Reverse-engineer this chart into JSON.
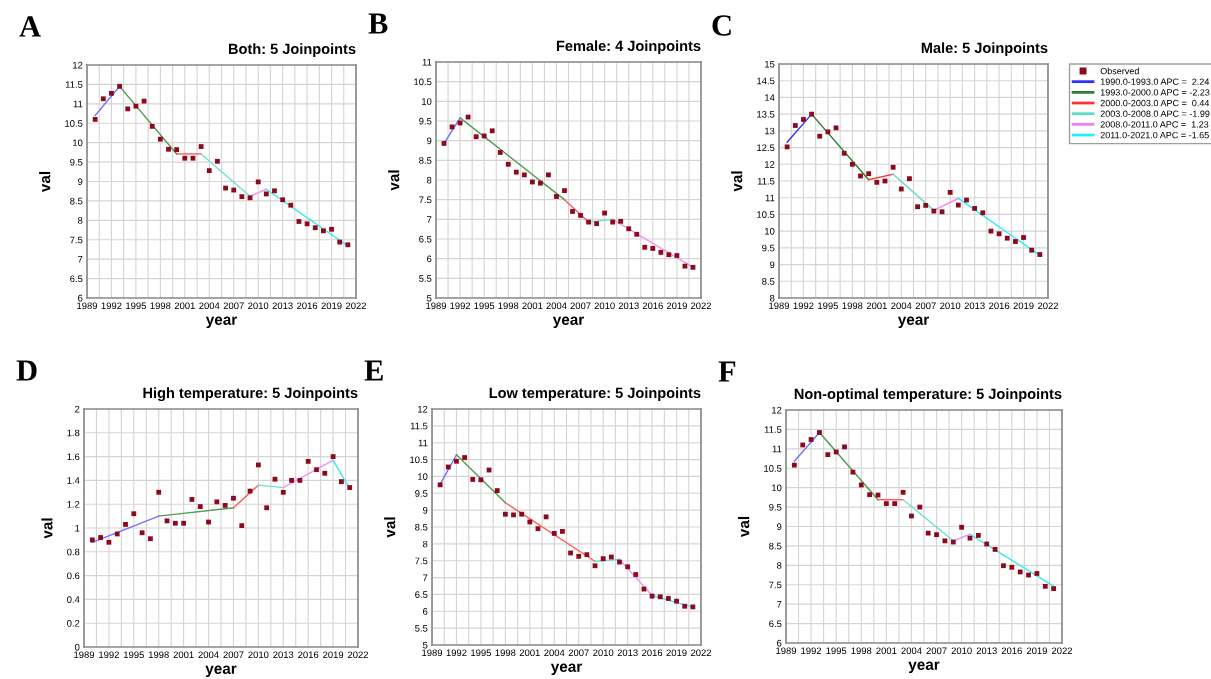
{
  "chart_data": [
    {
      "type": "scatter",
      "title": "Both: 5 Joinpoints",
      "xlabel": "year",
      "ylabel": "val",
      "annotations": [
        "A"
      ],
      "grid": true,
      "x": [
        1990,
        1991,
        1992,
        1993,
        1994,
        1995,
        1996,
        1997,
        1998,
        1999,
        2000,
        2001,
        2002,
        2003,
        2004,
        2005,
        2006,
        2007,
        2008,
        2009,
        2010,
        2011,
        2012,
        2013,
        2014,
        2015,
        2016,
        2017,
        2018,
        2019,
        2020,
        2021
      ],
      "xlim": [
        1989,
        2022
      ],
      "xticks": [
        1989,
        {
          "value": 1990.5,
          "label": null
        },
        1992,
        {
          "value": 1993.5,
          "label": null
        },
        1995,
        {
          "value": 1996.5,
          "label": null
        },
        1998,
        {
          "value": 1999.5,
          "label": null
        },
        2001,
        {
          "value": 2002.5,
          "label": null
        },
        2004,
        {
          "value": 2005.5,
          "label": null
        },
        2007,
        {
          "value": 2008.5,
          "label": null
        },
        2010,
        {
          "value": 2011.5,
          "label": null
        },
        2013,
        {
          "value": 2014.5,
          "label": null
        },
        2016,
        {
          "value": 2017.5,
          "label": null
        },
        2019,
        {
          "value": 2020.5,
          "label": null
        },
        2022
      ],
      "ylim": [
        6,
        12
      ],
      "yticks": [
        6,
        6.5,
        7,
        7.5,
        8,
        8.5,
        9,
        9.5,
        10,
        10.5,
        11,
        11.5,
        12
      ],
      "series": [
        {
          "marker": "square",
          "color": "#8b0a1e",
          "values": [
            10.6,
            11.13,
            11.27,
            11.45,
            10.87,
            10.94,
            11.07,
            10.42,
            10.09,
            9.83,
            9.82,
            9.6,
            9.6,
            9.9,
            9.28,
            9.52,
            8.83,
            8.78,
            8.61,
            8.58,
            8.99,
            8.68,
            8.76,
            8.53,
            8.39,
            7.97,
            7.91,
            7.81,
            7.73,
            7.77,
            7.44,
            7.37
          ]
        },
        {
          "type": "line",
          "color": "#7070ff",
          "x": [
            1990,
            1993
          ],
          "values": [
            10.7,
            11.45
          ]
        },
        {
          "type": "line",
          "color": "#4f9a4f",
          "x": [
            1993,
            2000
          ],
          "values": [
            11.45,
            9.71
          ]
        },
        {
          "type": "line",
          "color": "#ff5a5a",
          "x": [
            2000,
            2003
          ],
          "values": [
            9.71,
            9.71
          ]
        },
        {
          "type": "line",
          "color": "#6fe0d0",
          "x": [
            2003,
            2009
          ],
          "values": [
            9.71,
            8.62
          ]
        },
        {
          "type": "line",
          "color": "#f090f0",
          "x": [
            2009,
            2011
          ],
          "values": [
            8.62,
            8.8
          ]
        },
        {
          "type": "line",
          "color": "#40e8f0",
          "x": [
            2011,
            2021
          ],
          "values": [
            8.8,
            7.34
          ]
        }
      ]
    },
    {
      "type": "scatter",
      "title": "Female: 4 Joinpoints",
      "xlabel": "year",
      "ylabel": "val",
      "annotations": [
        "B"
      ],
      "grid": true,
      "x": [
        1990,
        1991,
        1992,
        1993,
        1994,
        1995,
        1996,
        1997,
        1998,
        1999,
        2000,
        2001,
        2002,
        2003,
        2004,
        2005,
        2006,
        2007,
        2008,
        2009,
        2010,
        2011,
        2012,
        2013,
        2014,
        2015,
        2016,
        2017,
        2018,
        2019,
        2020,
        2021
      ],
      "xlim": [
        1989,
        2022
      ],
      "xticks": [
        1989,
        {
          "value": 1990.5,
          "label": null
        },
        1992,
        {
          "value": 1993.5,
          "label": null
        },
        1995,
        {
          "value": 1996.5,
          "label": null
        },
        1998,
        {
          "value": 1999.5,
          "label": null
        },
        2001,
        {
          "value": 2002.5,
          "label": null
        },
        2004,
        {
          "value": 2005.5,
          "label": null
        },
        2007,
        {
          "value": 2008.5,
          "label": null
        },
        2010,
        {
          "value": 2011.5,
          "label": null
        },
        2013,
        {
          "value": 2014.5,
          "label": null
        },
        2016,
        {
          "value": 2017.5,
          "label": null
        },
        2019,
        {
          "value": 2020.5,
          "label": null
        },
        2022
      ],
      "ylim": [
        5,
        11
      ],
      "yticks": [
        5,
        5.5,
        6,
        6.5,
        7,
        7.5,
        8,
        8.5,
        9,
        9.5,
        10,
        10.5,
        11
      ],
      "series": [
        {
          "marker": "square",
          "color": "#8b0a1e",
          "values": [
            8.93,
            9.35,
            9.45,
            9.6,
            9.1,
            9.12,
            9.25,
            8.7,
            8.4,
            8.2,
            8.13,
            7.95,
            7.92,
            8.13,
            7.58,
            7.73,
            7.2,
            7.1,
            6.93,
            6.89,
            7.16,
            6.93,
            6.95,
            6.76,
            6.62,
            6.29,
            6.26,
            6.16,
            6.1,
            6.08,
            5.81,
            5.78
          ]
        },
        {
          "type": "line",
          "color": "#7070ff",
          "x": [
            1990,
            1992
          ],
          "values": [
            8.93,
            9.58
          ]
        },
        {
          "type": "line",
          "color": "#4f9a4f",
          "x": [
            1992,
            2005
          ],
          "values": [
            9.58,
            7.5
          ]
        },
        {
          "type": "line",
          "color": "#ff5a5a",
          "x": [
            2005,
            2008
          ],
          "values": [
            7.5,
            6.93
          ]
        },
        {
          "type": "line",
          "color": "#6fe0d0",
          "x": [
            2008,
            2011
          ],
          "values": [
            6.93,
            7.0
          ]
        },
        {
          "type": "line",
          "color": "#f090f0",
          "x": [
            2011,
            2021
          ],
          "values": [
            7.0,
            5.78
          ]
        }
      ]
    },
    {
      "type": "scatter",
      "title": "Male: 5 Joinpoints",
      "xlabel": "year",
      "ylabel": "val",
      "annotations": [
        "C"
      ],
      "grid": true,
      "legend": "right",
      "x": [
        1990,
        1991,
        1992,
        1993,
        1994,
        1995,
        1996,
        1997,
        1998,
        1999,
        2000,
        2001,
        2002,
        2003,
        2004,
        2005,
        2006,
        2007,
        2008,
        2009,
        2010,
        2011,
        2012,
        2013,
        2014,
        2015,
        2016,
        2017,
        2018,
        2019,
        2020,
        2021
      ],
      "xlim": [
        1989,
        2022
      ],
      "xticks": [
        1989,
        {
          "value": 1990.5,
          "label": null
        },
        1992,
        {
          "value": 1993.5,
          "label": null
        },
        1995,
        {
          "value": 1996.5,
          "label": null
        },
        1998,
        {
          "value": 1999.5,
          "label": null
        },
        2001,
        {
          "value": 2002.5,
          "label": null
        },
        2004,
        {
          "value": 2005.5,
          "label": null
        },
        2007,
        {
          "value": 2008.5,
          "label": null
        },
        2010,
        {
          "value": 2011.5,
          "label": null
        },
        2013,
        {
          "value": 2014.5,
          "label": null
        },
        2016,
        {
          "value": 2017.5,
          "label": null
        },
        2019,
        {
          "value": 2020.5,
          "label": null
        },
        2022
      ],
      "ylim": [
        8,
        15
      ],
      "yticks": [
        8,
        8.5,
        9,
        9.5,
        10,
        10.5,
        11,
        11.5,
        12,
        12.5,
        13,
        13.5,
        14,
        14.5,
        15
      ],
      "series": [
        {
          "name": "Observed",
          "marker": "square",
          "color": "#8b0a1e",
          "values": [
            12.52,
            13.16,
            13.34,
            13.5,
            12.84,
            12.97,
            13.09,
            12.33,
            12.0,
            11.65,
            11.72,
            11.46,
            11.5,
            11.91,
            11.26,
            11.57,
            10.73,
            10.77,
            10.6,
            10.58,
            11.16,
            10.78,
            10.93,
            10.68,
            10.55,
            10.0,
            9.92,
            9.79,
            9.69,
            9.81,
            9.43,
            9.3
          ]
        },
        {
          "type": "line",
          "name": "1990.0-1993.0 APC =  2.24",
          "color": "#3030f0",
          "x": [
            1990,
            1993
          ],
          "values": [
            12.66,
            13.5
          ]
        },
        {
          "type": "line",
          "name": "1993.0-2000.0 APC = -2.23",
          "color": "#2e7d2e",
          "x": [
            1993,
            2000
          ],
          "values": [
            13.5,
            11.54
          ]
        },
        {
          "type": "line",
          "name": "2000.0-2003.0 APC =  0.44",
          "color": "#ff3030",
          "x": [
            2000,
            2003
          ],
          "values": [
            11.54,
            11.7
          ]
        },
        {
          "type": "line",
          "name": "2003.0-2008.0 APC = -1.99",
          "color": "#5fdcc8",
          "x": [
            2003,
            2008
          ],
          "values": [
            11.7,
            10.62
          ]
        },
        {
          "type": "line",
          "name": "2008.0-2011.0 APC =  1.23",
          "color": "#f080f0",
          "x": [
            2008,
            2011
          ],
          "values": [
            10.62,
            10.98
          ]
        },
        {
          "type": "line",
          "name": "2011.0-2021.0 APC = -1.65",
          "color": "#20f0f8",
          "x": [
            2011,
            2021
          ],
          "values": [
            10.98,
            9.28
          ]
        }
      ]
    },
    {
      "type": "scatter",
      "title": "High temperature: 5 Joinpoints",
      "xlabel": "year",
      "ylabel": "val",
      "annotations": [
        "D"
      ],
      "grid": true,
      "x": [
        1990,
        1991,
        1992,
        1993,
        1994,
        1995,
        1996,
        1997,
        1998,
        1999,
        2000,
        2001,
        2002,
        2003,
        2004,
        2005,
        2006,
        2007,
        2008,
        2009,
        2010,
        2011,
        2012,
        2013,
        2014,
        2015,
        2016,
        2017,
        2018,
        2019,
        2020,
        2021
      ],
      "xlim": [
        1989,
        2022
      ],
      "xticks": [
        1989,
        {
          "value": 1990.5,
          "label": null
        },
        1992,
        {
          "value": 1993.5,
          "label": null
        },
        1995,
        {
          "value": 1996.5,
          "label": null
        },
        1998,
        {
          "value": 1999.5,
          "label": null
        },
        2001,
        {
          "value": 2002.5,
          "label": null
        },
        2004,
        {
          "value": 2005.5,
          "label": null
        },
        2007,
        {
          "value": 2008.5,
          "label": null
        },
        2010,
        {
          "value": 2011.5,
          "label": null
        },
        2013,
        {
          "value": 2014.5,
          "label": null
        },
        2016,
        {
          "value": 2017.5,
          "label": null
        },
        2019,
        {
          "value": 2020.5,
          "label": null
        },
        2022
      ],
      "ylim": [
        0,
        2
      ],
      "yticks": [
        0,
        0.2,
        0.4,
        0.6,
        0.8,
        1,
        1.2,
        1.4,
        1.6,
        1.8,
        2
      ],
      "series": [
        {
          "marker": "square",
          "color": "#8b0a1e",
          "values": [
            0.9,
            0.92,
            0.88,
            0.95,
            1.03,
            1.12,
            0.96,
            0.91,
            1.3,
            1.06,
            1.04,
            1.04,
            1.24,
            1.18,
            1.05,
            1.22,
            1.19,
            1.25,
            1.02,
            1.31,
            1.53,
            1.17,
            1.41,
            1.3,
            1.4,
            1.4,
            1.56,
            1.49,
            1.46,
            1.6,
            1.39,
            1.34
          ]
        },
        {
          "type": "line",
          "color": "#7070ff",
          "x": [
            1990,
            1998
          ],
          "values": [
            0.88,
            1.1
          ]
        },
        {
          "type": "line",
          "color": "#4f9a4f",
          "x": [
            1998,
            2007
          ],
          "values": [
            1.1,
            1.17
          ]
        },
        {
          "type": "line",
          "color": "#ff5a5a",
          "x": [
            2007,
            2010
          ],
          "values": [
            1.17,
            1.36
          ]
        },
        {
          "type": "line",
          "color": "#6fe0d0",
          "x": [
            2010,
            2013
          ],
          "values": [
            1.36,
            1.34
          ]
        },
        {
          "type": "line",
          "color": "#f090f0",
          "x": [
            2013,
            2019
          ],
          "values": [
            1.34,
            1.57
          ]
        },
        {
          "type": "line",
          "color": "#40e8f0",
          "x": [
            2019,
            2021
          ],
          "values": [
            1.57,
            1.33
          ]
        }
      ]
    },
    {
      "type": "scatter",
      "title": "Low temperature: 5 Joinpoints",
      "xlabel": "year",
      "ylabel": "val",
      "annotations": [
        "E"
      ],
      "grid": true,
      "x": [
        1990,
        1991,
        1992,
        1993,
        1994,
        1995,
        1996,
        1997,
        1998,
        1999,
        2000,
        2001,
        2002,
        2003,
        2004,
        2005,
        2006,
        2007,
        2008,
        2009,
        2010,
        2011,
        2012,
        2013,
        2014,
        2015,
        2016,
        2017,
        2018,
        2019,
        2020,
        2021
      ],
      "xlim": [
        1989,
        2022
      ],
      "xticks": [
        1989,
        {
          "value": 1990.5,
          "label": null
        },
        1992,
        {
          "value": 1993.5,
          "label": null
        },
        1995,
        {
          "value": 1996.5,
          "label": null
        },
        1998,
        {
          "value": 1999.5,
          "label": null
        },
        2001,
        {
          "value": 2002.5,
          "label": null
        },
        2004,
        {
          "value": 2005.5,
          "label": null
        },
        2007,
        {
          "value": 2008.5,
          "label": null
        },
        2010,
        {
          "value": 2011.5,
          "label": null
        },
        2013,
        {
          "value": 2014.5,
          "label": null
        },
        2016,
        {
          "value": 2017.5,
          "label": null
        },
        2019,
        {
          "value": 2020.5,
          "label": null
        },
        2022
      ],
      "ylim": [
        5,
        12
      ],
      "yticks": [
        5,
        5.5,
        6,
        6.5,
        7,
        7.5,
        8,
        8.5,
        9,
        9.5,
        10,
        10.5,
        11,
        11.5,
        12
      ],
      "series": [
        {
          "marker": "square",
          "color": "#8b0a1e",
          "values": [
            9.75,
            10.28,
            10.45,
            10.56,
            9.91,
            9.9,
            10.19,
            9.58,
            8.88,
            8.86,
            8.88,
            8.65,
            8.45,
            8.8,
            8.31,
            8.37,
            7.73,
            7.63,
            7.68,
            7.35,
            7.56,
            7.61,
            7.46,
            7.32,
            7.09,
            6.66,
            6.45,
            6.43,
            6.38,
            6.3,
            6.15,
            6.13
          ]
        },
        {
          "type": "line",
          "color": "#7070ff",
          "x": [
            1990,
            1992
          ],
          "values": [
            9.77,
            10.64
          ]
        },
        {
          "type": "line",
          "color": "#4f9a4f",
          "x": [
            1992,
            1998
          ],
          "values": [
            10.64,
            9.22
          ]
        },
        {
          "type": "line",
          "color": "#ff5a5a",
          "x": [
            1998,
            2009
          ],
          "values": [
            9.22,
            7.48
          ]
        },
        {
          "type": "line",
          "color": "#6fe0d0",
          "x": [
            2009,
            2012
          ],
          "values": [
            7.48,
            7.54
          ]
        },
        {
          "type": "line",
          "color": "#f090f0",
          "x": [
            2012,
            2016
          ],
          "values": [
            7.54,
            6.47
          ]
        },
        {
          "type": "line",
          "color": "#40e8f0",
          "x": [
            2016,
            2021
          ],
          "values": [
            6.47,
            6.12
          ]
        }
      ]
    },
    {
      "type": "scatter",
      "title": "Non-optimal temperature: 5 Joinpoints",
      "xlabel": "year",
      "ylabel": "val",
      "annotations": [
        "F"
      ],
      "grid": true,
      "x": [
        1990,
        1991,
        1992,
        1993,
        1994,
        1995,
        1996,
        1997,
        1998,
        1999,
        2000,
        2001,
        2002,
        2003,
        2004,
        2005,
        2006,
        2007,
        2008,
        2009,
        2010,
        2011,
        2012,
        2013,
        2014,
        2015,
        2016,
        2017,
        2018,
        2019,
        2020,
        2021
      ],
      "xlim": [
        1989,
        2022
      ],
      "xticks": [
        1989,
        {
          "value": 1990.5,
          "label": null
        },
        1992,
        {
          "value": 1993.5,
          "label": null
        },
        1995,
        {
          "value": 1996.5,
          "label": null
        },
        1998,
        {
          "value": 1999.5,
          "label": null
        },
        2001,
        {
          "value": 2002.5,
          "label": null
        },
        2004,
        {
          "value": 2005.5,
          "label": null
        },
        2007,
        {
          "value": 2008.5,
          "label": null
        },
        2010,
        {
          "value": 2011.5,
          "label": null
        },
        2013,
        {
          "value": 2014.5,
          "label": null
        },
        2016,
        {
          "value": 2017.5,
          "label": null
        },
        2019,
        {
          "value": 2020.5,
          "label": null
        },
        2022
      ],
      "ylim": [
        6,
        12
      ],
      "yticks": [
        6,
        6.5,
        7,
        7.5,
        8,
        8.5,
        9,
        9.5,
        10,
        10.5,
        11,
        11.5,
        12
      ],
      "series": [
        {
          "marker": "square",
          "color": "#8b0a1e",
          "values": [
            10.58,
            11.1,
            11.24,
            11.42,
            10.85,
            10.92,
            11.05,
            10.4,
            10.07,
            9.82,
            9.81,
            9.59,
            9.59,
            9.88,
            9.27,
            9.5,
            8.83,
            8.79,
            8.63,
            8.6,
            8.98,
            8.7,
            8.77,
            8.55,
            8.41,
            7.99,
            7.95,
            7.83,
            7.75,
            7.79,
            7.46,
            7.4
          ]
        },
        {
          "type": "line",
          "color": "#7070ff",
          "x": [
            1990,
            1993
          ],
          "values": [
            10.68,
            11.42
          ]
        },
        {
          "type": "line",
          "color": "#4f9a4f",
          "x": [
            1993,
            2000
          ],
          "values": [
            11.42,
            9.69
          ]
        },
        {
          "type": "line",
          "color": "#ff5a5a",
          "x": [
            2000,
            2003
          ],
          "values": [
            9.69,
            9.69
          ]
        },
        {
          "type": "line",
          "color": "#6fe0d0",
          "x": [
            2003,
            2009
          ],
          "values": [
            9.69,
            8.63
          ]
        },
        {
          "type": "line",
          "color": "#f090f0",
          "x": [
            2009,
            2011
          ],
          "values": [
            8.63,
            8.8
          ]
        },
        {
          "type": "line",
          "color": "#40e8f0",
          "x": [
            2011,
            2021
          ],
          "values": [
            8.8,
            7.46
          ]
        }
      ]
    }
  ]
}
